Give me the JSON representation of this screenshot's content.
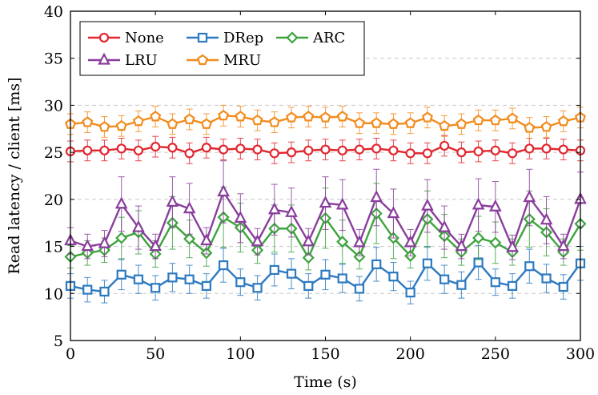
{
  "chart_data": {
    "type": "line",
    "xlabel": "Time (s)",
    "ylabel": "Read latency / client [ms]",
    "xlim": [
      0,
      300
    ],
    "ylim": [
      5,
      40
    ],
    "xticks": [
      0,
      50,
      100,
      150,
      200,
      250,
      300
    ],
    "yticks": [
      5,
      10,
      15,
      20,
      25,
      30,
      35,
      40
    ],
    "grid": "horizontal dashed",
    "legend_position": "top-left",
    "x": [
      0,
      10,
      20,
      30,
      40,
      50,
      60,
      70,
      80,
      90,
      100,
      110,
      120,
      130,
      140,
      150,
      160,
      170,
      180,
      190,
      200,
      210,
      220,
      230,
      240,
      250,
      260,
      270,
      280,
      290,
      300
    ],
    "series": [
      {
        "name": "None",
        "color": "#e0262f",
        "marker": "circle",
        "values": [
          25.1,
          25.2,
          25.2,
          25.4,
          25.2,
          25.6,
          25.5,
          24.9,
          25.5,
          25.3,
          25.4,
          25.3,
          24.9,
          25.0,
          25.2,
          25.3,
          25.2,
          25.3,
          25.4,
          25.2,
          24.9,
          24.9,
          25.7,
          25.0,
          25.1,
          25.2,
          24.9,
          25.4,
          25.4,
          25.3,
          25.2
        ],
        "errors": [
          1.1,
          1.1,
          1.1,
          1.1,
          1.1,
          1.1,
          1.1,
          1.1,
          1.1,
          1.1,
          1.1,
          1.1,
          1.1,
          1.1,
          1.1,
          1.1,
          1.1,
          1.1,
          1.1,
          1.1,
          1.1,
          1.1,
          1.1,
          1.1,
          1.1,
          1.1,
          1.1,
          1.1,
          1.1,
          1.1,
          1.1
        ]
      },
      {
        "name": "DRep",
        "color": "#2d7ac0",
        "marker": "square",
        "values": [
          10.8,
          10.4,
          10.2,
          12.0,
          11.5,
          10.6,
          11.7,
          11.5,
          10.8,
          13.0,
          11.2,
          10.6,
          12.5,
          12.1,
          10.8,
          12.0,
          11.6,
          10.5,
          13.1,
          11.8,
          10.1,
          13.2,
          11.5,
          10.9,
          13.3,
          11.2,
          10.8,
          12.9,
          11.6,
          10.7,
          13.2
        ],
        "errors": [
          1.3,
          1.3,
          1.2,
          1.6,
          1.5,
          1.3,
          1.5,
          1.5,
          1.3,
          1.8,
          1.4,
          1.3,
          1.7,
          1.6,
          1.3,
          1.6,
          1.5,
          1.3,
          1.8,
          1.5,
          1.2,
          1.8,
          1.5,
          1.4,
          1.8,
          1.4,
          1.3,
          1.8,
          1.5,
          1.3,
          1.8
        ]
      },
      {
        "name": "ARC",
        "color": "#3da33d",
        "marker": "diamond",
        "values": [
          13.9,
          14.3,
          14.6,
          15.9,
          16.5,
          14.2,
          17.5,
          15.8,
          14.3,
          18.1,
          17.0,
          14.6,
          16.9,
          16.9,
          13.8,
          18.0,
          15.5,
          13.9,
          18.5,
          15.9,
          14.0,
          17.9,
          16.1,
          14.4,
          15.9,
          15.4,
          14.4,
          17.9,
          16.5,
          14.4,
          17.4
        ],
        "errors": [
          1.2,
          1.3,
          1.3,
          2.2,
          2.3,
          1.4,
          2.8,
          2.0,
          1.4,
          3.2,
          2.6,
          1.4,
          2.5,
          2.5,
          1.3,
          3.2,
          2.3,
          1.3,
          3.2,
          2.2,
          1.3,
          3.0,
          2.3,
          1.4,
          2.3,
          2.2,
          1.4,
          3.0,
          2.5,
          1.4,
          2.8
        ]
      },
      {
        "name": "LRU",
        "color": "#8a3e9c",
        "marker": "triangle",
        "values": [
          15.6,
          15.0,
          15.3,
          19.5,
          17.0,
          15.0,
          19.7,
          19.0,
          15.6,
          20.8,
          18.0,
          15.5,
          18.9,
          18.6,
          15.5,
          19.6,
          19.4,
          15.4,
          20.2,
          18.5,
          15.4,
          19.3,
          17.0,
          15.0,
          19.4,
          19.2,
          14.9,
          20.2,
          17.8,
          15.0,
          20.0
        ],
        "errors": [
          1.4,
          1.3,
          1.4,
          2.9,
          2.3,
          1.3,
          2.7,
          2.7,
          1.4,
          3.3,
          2.6,
          1.4,
          2.7,
          2.6,
          1.4,
          2.8,
          2.7,
          1.4,
          3.0,
          2.6,
          1.4,
          2.8,
          2.3,
          1.3,
          2.8,
          2.7,
          1.3,
          3.0,
          2.5,
          1.3,
          2.9
        ]
      },
      {
        "name": "MRU",
        "color": "#f28c1e",
        "marker": "pentagon",
        "values": [
          28.0,
          28.2,
          27.7,
          27.8,
          28.3,
          28.8,
          28.0,
          28.5,
          28.0,
          28.9,
          28.8,
          28.4,
          28.2,
          28.7,
          28.8,
          28.7,
          28.8,
          28.1,
          28.1,
          28.0,
          28.1,
          28.7,
          27.8,
          28.0,
          28.4,
          28.4,
          28.6,
          27.6,
          27.7,
          28.3,
          28.7
        ],
        "errors": [
          1.1,
          1.1,
          1.1,
          1.1,
          1.1,
          1.1,
          1.1,
          1.1,
          1.1,
          1.1,
          1.1,
          1.1,
          1.1,
          1.1,
          1.1,
          1.1,
          1.1,
          1.1,
          1.1,
          1.1,
          1.1,
          1.1,
          1.1,
          1.1,
          1.1,
          1.1,
          1.1,
          1.1,
          1.1,
          1.1,
          1.1
        ]
      }
    ],
    "legend_rows": [
      [
        "None",
        "DRep",
        "ARC"
      ],
      [
        "LRU",
        "MRU"
      ]
    ]
  }
}
